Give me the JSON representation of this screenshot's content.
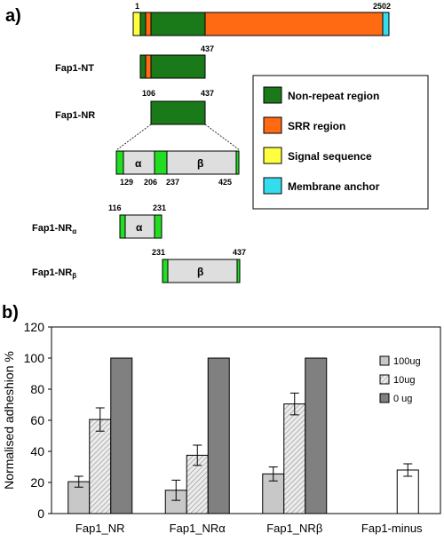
{
  "panel_a": {
    "label": "a)",
    "full_protein": {
      "start": "1",
      "end": "2502"
    },
    "constructs": {
      "nt": {
        "name": "Fap1-NT",
        "end": "437"
      },
      "nr": {
        "name": "Fap1-NR",
        "start": "106",
        "end": "437"
      },
      "detail": {
        "alpha": "α",
        "beta": "β",
        "p129": "129",
        "p206": "206",
        "p237": "237",
        "p425": "425"
      },
      "nr_alpha": {
        "name_main": "Fap1-NR",
        "name_sub": "α",
        "start": "116",
        "end": "231",
        "domain": "α"
      },
      "nr_beta": {
        "name_main": "Fap1-NR",
        "name_sub": "β",
        "start": "231",
        "end": "437",
        "domain": "β"
      }
    },
    "legend": {
      "items": [
        {
          "label": "Non-repeat region",
          "color": "#1a7a1a"
        },
        {
          "label": "SRR region",
          "color": "#ff6a13"
        },
        {
          "label": "Signal sequence",
          "color": "#ffff40"
        },
        {
          "label": "Membrane anchor",
          "color": "#33ddee"
        }
      ]
    },
    "colors": {
      "nonrepeat": "#1a7a1a",
      "srr": "#ff6a13",
      "signal": "#ffff40",
      "anchor": "#33ddee",
      "bright_green": "#22dd22",
      "domain_fill": "#dedede"
    }
  },
  "panel_b": {
    "label": "b)",
    "chart_data": {
      "type": "bar",
      "ylabel": "Normalised adheshion %",
      "ylim": [
        0,
        120
      ],
      "yticks": [
        0,
        20,
        40,
        60,
        80,
        100,
        120
      ],
      "categories": [
        "Fap1_NR",
        "Fap1_NRα",
        "Fap1_NRβ",
        "Fap1-minus"
      ],
      "series": [
        {
          "name": "100ug",
          "values": [
            20.5,
            15,
            25.5,
            null
          ],
          "errors": [
            3.5,
            6.5,
            4.5,
            null
          ],
          "color": "#c8c8c8",
          "pattern": "solid"
        },
        {
          "name": "10ug",
          "values": [
            60.5,
            37.5,
            70.5,
            null
          ],
          "errors": [
            7.5,
            6.5,
            7,
            null
          ],
          "color": "#e6e6e6",
          "pattern": "hatched"
        },
        {
          "name": "0 ug",
          "values": [
            100,
            100,
            100,
            null
          ],
          "errors": [
            null,
            null,
            null,
            null
          ],
          "color": "#808080",
          "pattern": "solid"
        }
      ],
      "extra": {
        "category": "Fap1-minus",
        "value": 28,
        "error": 4,
        "color": "#ffffff"
      },
      "legend_position": "right"
    }
  }
}
